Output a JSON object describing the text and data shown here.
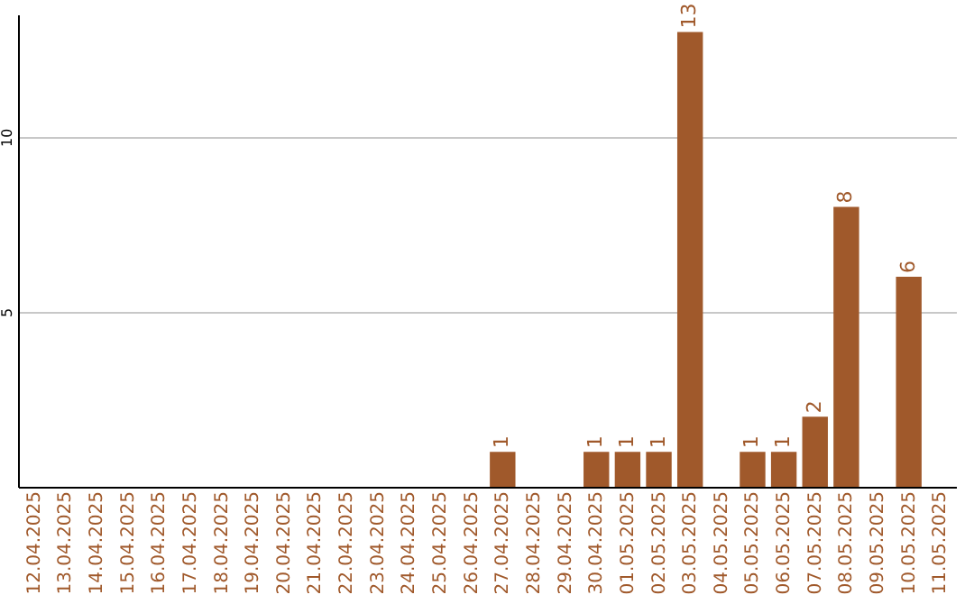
{
  "chart_data": {
    "type": "bar",
    "categories": [
      "12.04.2025",
      "13.04.2025",
      "14.04.2025",
      "15.04.2025",
      "16.04.2025",
      "17.04.2025",
      "18.04.2025",
      "19.04.2025",
      "20.04.2025",
      "21.04.2025",
      "22.04.2025",
      "23.04.2025",
      "24.04.2025",
      "25.04.2025",
      "26.04.2025",
      "27.04.2025",
      "28.04.2025",
      "29.04.2025",
      "30.04.2025",
      "01.05.2025",
      "02.05.2025",
      "03.05.2025",
      "04.05.2025",
      "05.05.2025",
      "06.05.2025",
      "07.05.2025",
      "08.05.2025",
      "09.05.2025",
      "10.05.2025",
      "11.05.2025"
    ],
    "values": [
      null,
      null,
      null,
      null,
      null,
      null,
      null,
      null,
      null,
      null,
      null,
      null,
      null,
      null,
      null,
      1,
      null,
      null,
      1,
      1,
      1,
      13,
      null,
      1,
      1,
      2,
      8,
      null,
      6,
      null
    ],
    "color": "#a0592b",
    "ylim": [
      0,
      13.5
    ],
    "yticks": [
      5,
      10
    ],
    "grid": "y",
    "data_labels": true
  }
}
